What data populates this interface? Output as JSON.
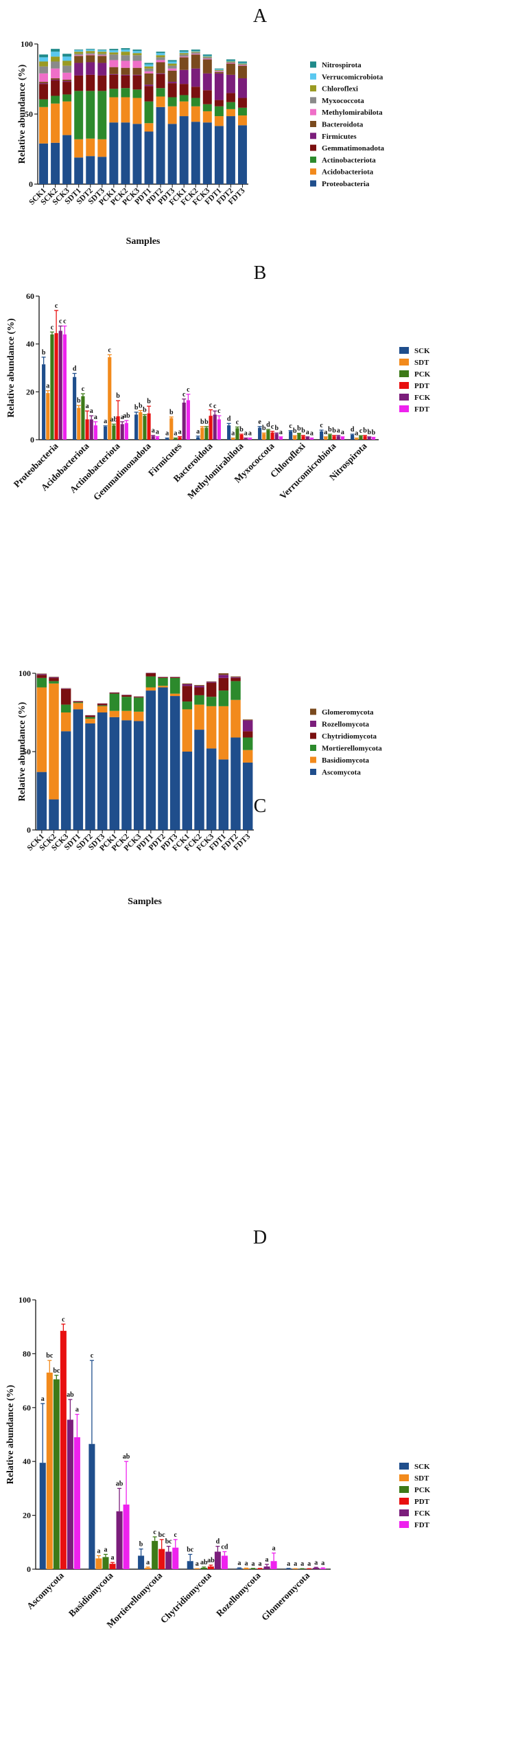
{
  "colors": {
    "Proteobacteria": "#1f4e8c",
    "Acidobacteriota": "#f28a1c",
    "Actinobacteriota": "#2c8a2c",
    "Gemmatimonadota": "#7a1010",
    "Firmicutes": "#7b1d7b",
    "Bacteroidota": "#7a4a1e",
    "Methylomirabilota": "#ef6fc8",
    "Myxococcota": "#8a8a8a",
    "Chloroflexi": "#9a9a22",
    "Verrucomicrobiota": "#5ac8f0",
    "Nitrospirota": "#1f8a8a",
    "Ascomycota": "#1f4e8c",
    "Basidiomycota": "#f28a1c",
    "Mortierellomycota": "#2c8a2c",
    "Chytridiomycota": "#7a1010",
    "Rozellomycota": "#7b1d7b",
    "Glomeromycota": "#7a4a1e",
    "SCK": "#1f4e8c",
    "SDT": "#f28a1c",
    "PCK": "#3d7a18",
    "PDT": "#e81010",
    "FCK": "#7b1d7b",
    "FDT": "#ee22ee"
  },
  "chart_data": [
    {
      "panel": "A",
      "type": "bar",
      "stacked": true,
      "xlabel": "Samples",
      "ylabel": "Relative abundance (%)",
      "ylim": [
        0,
        100
      ],
      "yticks": [
        0,
        50,
        100
      ],
      "categories": [
        "SCK1",
        "SCK2",
        "SCK3",
        "SDT1",
        "SDT2",
        "SDT3",
        "PCK1",
        "PCK2",
        "PCK3",
        "PDT1",
        "PDT2",
        "PDT3",
        "FCK1",
        "FCK2",
        "FCK3",
        "FDT1",
        "FDT2",
        "FDT3"
      ],
      "series": [
        {
          "name": "Proteobacteria",
          "values": [
            29,
            29.5,
            35,
            19,
            20,
            19.5,
            44,
            44,
            43,
            37.5,
            55,
            43,
            48.5,
            44.5,
            44,
            41.5,
            48.5,
            42
          ]
        },
        {
          "name": "Acidobacteriota",
          "values": [
            26,
            28,
            24,
            13,
            12.5,
            12.5,
            18,
            18,
            18.5,
            6,
            7.5,
            12.5,
            10.5,
            11,
            8,
            7,
            5,
            7
          ]
        },
        {
          "name": "Actinobacteriota",
          "values": [
            5.5,
            5.5,
            5,
            34.5,
            34,
            34.5,
            6,
            6.5,
            6,
            15.5,
            6,
            6.5,
            4.5,
            6,
            5,
            7,
            5,
            5.5
          ]
        },
        {
          "name": "Gemmatimonadota",
          "values": [
            11,
            11,
            9,
            11,
            11.5,
            11,
            10,
            9,
            10,
            11,
            10,
            10,
            8,
            8,
            10,
            4.5,
            6.5,
            7
          ]
        },
        {
          "name": "Firmicutes",
          "values": [
            0.5,
            0.5,
            0.5,
            9,
            9,
            9,
            0.5,
            0.5,
            0.5,
            1,
            0.5,
            1,
            10,
            13,
            12,
            19,
            13,
            14
          ]
        },
        {
          "name": "Bacteroidota",
          "values": [
            1,
            1,
            1,
            5,
            5,
            5,
            5,
            5,
            5,
            8,
            8,
            8,
            9,
            10,
            10,
            1,
            8,
            9
          ]
        },
        {
          "name": "Methylomirabilota",
          "values": [
            6,
            7,
            5,
            0.5,
            0.5,
            0.5,
            5,
            5,
            5,
            1.5,
            1.5,
            1.5,
            0.5,
            0.5,
            0.5,
            0.5,
            0.5,
            0.5
          ]
        },
        {
          "name": "Myxococcota",
          "values": [
            5,
            5,
            5,
            1,
            1,
            1,
            4,
            4,
            4,
            2,
            2,
            2,
            1.5,
            1,
            1,
            0.5,
            0.5,
            0.5
          ]
        },
        {
          "name": "Chloroflexi",
          "values": [
            3.5,
            3.5,
            3.5,
            1.5,
            1.5,
            1.5,
            1.5,
            2.5,
            1.5,
            1.5,
            1.5,
            1.5,
            1,
            0.5,
            0.5,
            0.5,
            0.5,
            0.5
          ]
        },
        {
          "name": "Verrucomicrobiota",
          "values": [
            3,
            3.5,
            3,
            1,
            1,
            1,
            1.5,
            1.5,
            1.5,
            1.5,
            1.5,
            1.5,
            1,
            0.5,
            0.5,
            0.5,
            0.5,
            0.5
          ]
        },
        {
          "name": "Nitrospirota",
          "values": [
            2,
            2,
            2,
            0.5,
            0.5,
            0.5,
            1,
            1,
            1,
            1,
            1,
            1,
            1,
            1,
            1,
            0.5,
            1,
            1
          ]
        }
      ]
    },
    {
      "panel": "B",
      "type": "bar",
      "grouped": true,
      "error_bars": true,
      "ylabel": "Relative abundance (%)",
      "ylim": [
        0,
        60
      ],
      "yticks": [
        0,
        20,
        40,
        60
      ],
      "categories": [
        "Proteobacteria",
        "Acidobacteriota",
        "Actinobacteriota",
        "Gemmatimonadota",
        "Firmicutes",
        "Bacteroidota",
        "Methylomirabilota",
        "Myxococcota",
        "Chloroflexi",
        "Verrucomicrobiota",
        "Nitrospirota"
      ],
      "series": [
        {
          "name": "SCK",
          "values": [
            31.5,
            26.2,
            5.5,
            10.5,
            0.5,
            1,
            6,
            5,
            3.5,
            3.5,
            2
          ],
          "errors": [
            3,
            1.5,
            0.3,
            1,
            0.2,
            0.5,
            0.8,
            0.5,
            0.3,
            0.5,
            0.3
          ],
          "letters": [
            "b",
            "d",
            "a",
            "b",
            "a",
            "a",
            "d",
            "e",
            "c",
            "c",
            "d"
          ]
        },
        {
          "name": "SDT",
          "values": [
            19.5,
            13.3,
            34.5,
            11.5,
            9,
            5,
            0.5,
            2.5,
            1.5,
            1,
            0.5
          ],
          "errors": [
            1,
            1,
            1,
            0.7,
            0.5,
            0.5,
            0.2,
            0.3,
            0.2,
            0.2,
            0.2
          ],
          "letters": [
            "a",
            "b",
            "c",
            "b",
            "b",
            "b",
            "a",
            "b",
            "b",
            "a",
            "a"
          ]
        },
        {
          "name": "PCK",
          "values": [
            44,
            18.2,
            6,
            10,
            0.5,
            5,
            4.8,
            4,
            2.5,
            2,
            1.5
          ],
          "errors": [
            1,
            1,
            0.5,
            0.5,
            0.2,
            0.5,
            0.5,
            0.3,
            0.2,
            0.3,
            0.2
          ],
          "letters": [
            "c",
            "c",
            "ab",
            "b",
            "a",
            "b",
            "c",
            "d",
            "b",
            "b",
            "c"
          ]
        },
        {
          "name": "PDT",
          "values": [
            44.5,
            8.5,
            9.8,
            11,
            1,
            10,
            2,
            3,
            1.5,
            1.5,
            1.5
          ],
          "errors": [
            9.5,
            3.5,
            6.5,
            3,
            0.3,
            2.5,
            0.3,
            0.5,
            0.3,
            0.3,
            0.3
          ],
          "letters": [
            "c",
            "a",
            "b",
            "b",
            "a",
            "c",
            "b",
            "c",
            "b",
            "b",
            "b"
          ]
        },
        {
          "name": "FCK",
          "values": [
            45.5,
            8.5,
            6.5,
            1.5,
            15.5,
            10.5,
            0.5,
            2.5,
            1,
            1.5,
            1
          ],
          "errors": [
            2,
            1.5,
            1,
            0.3,
            1.5,
            1.5,
            0.2,
            0.3,
            0.2,
            0.3,
            0.2
          ],
          "letters": [
            "c",
            "a",
            "a",
            "a",
            "c",
            "c",
            "a",
            "b",
            "a",
            "a",
            "b"
          ]
        },
        {
          "name": "FDT",
          "values": [
            44,
            6,
            7,
            1,
            16.5,
            8.5,
            0.5,
            1,
            0.5,
            1,
            0.8
          ],
          "errors": [
            3.5,
            1.5,
            1,
            0.3,
            2.5,
            1.5,
            0.2,
            0.2,
            0.2,
            0.2,
            0.2
          ],
          "letters": [
            "c",
            "a",
            "ab",
            "a",
            "c",
            "c",
            "a",
            "a",
            "a",
            "a",
            "b"
          ]
        }
      ]
    },
    {
      "panel": "C",
      "type": "bar",
      "stacked": true,
      "xlabel": "Samples",
      "ylabel": "Relative abundance (%)",
      "ylim": [
        0,
        100
      ],
      "yticks": [
        0,
        50,
        100
      ],
      "categories": [
        "SCK1",
        "SCK2",
        "SCK3",
        "SDT1",
        "SDT2",
        "SDT3",
        "PCK1",
        "PCK2",
        "PCK3",
        "PDT1",
        "PDT2",
        "PDT3",
        "FCK1",
        "FCK2",
        "FCK3",
        "FDT1",
        "FDT2",
        "FDT3"
      ],
      "series": [
        {
          "name": "Ascomycota",
          "values": [
            37,
            19.5,
            63,
            77,
            68,
            75,
            72,
            70,
            69.5,
            89,
            91,
            85.5,
            50,
            64,
            52,
            45,
            59,
            43
          ]
        },
        {
          "name": "Basidiomycota",
          "values": [
            54,
            74,
            12,
            4,
            3,
            4,
            4,
            6,
            6,
            2,
            1,
            1.5,
            27,
            16,
            27,
            34,
            24,
            8
          ]
        },
        {
          "name": "Mortierellomycota",
          "values": [
            6,
            1.5,
            5,
            0.5,
            1,
            0.5,
            11,
            9,
            9,
            7,
            5,
            10,
            5,
            6,
            6,
            10,
            12,
            8
          ]
        },
        {
          "name": "Chytridiomycota",
          "values": [
            2,
            2,
            10,
            0.5,
            1,
            1,
            0.5,
            1,
            0.5,
            2,
            0.5,
            0.5,
            10,
            5,
            9,
            8,
            2,
            4
          ]
        },
        {
          "name": "Rozellomycota",
          "values": [
            0.5,
            0.5,
            0.3,
            0.2,
            0.2,
            0.2,
            0.2,
            0.2,
            0.2,
            0.2,
            0.2,
            0.2,
            1,
            1,
            0.5,
            2,
            0.5,
            7
          ]
        },
        {
          "name": "Glomeromycota",
          "values": [
            0.3,
            0.3,
            0.2,
            0.1,
            0.1,
            0.1,
            0.1,
            0.1,
            0.1,
            0.1,
            0.1,
            0.1,
            0.5,
            0.5,
            0.3,
            1,
            0.5,
            0.5
          ]
        }
      ]
    },
    {
      "panel": "D",
      "type": "bar",
      "grouped": true,
      "error_bars": true,
      "ylabel": "Relative abundance (%)",
      "ylim": [
        0,
        100
      ],
      "yticks": [
        0,
        20,
        40,
        60,
        80,
        100
      ],
      "categories": [
        "Ascomycota",
        "Basidiomycota",
        "Mortierellomycota",
        "Chytridiomycota",
        "Rozellomycota",
        "Glomeromycota"
      ],
      "series": [
        {
          "name": "SCK",
          "values": [
            39.5,
            46.5,
            5,
            3,
            0.3,
            0.2
          ],
          "errors": [
            22,
            31,
            2.5,
            2.5,
            0.2,
            0.1
          ],
          "letters": [
            "a",
            "c",
            "b",
            "bc",
            "a",
            "a"
          ]
        },
        {
          "name": "SDT",
          "values": [
            73,
            4,
            0.5,
            0.1,
            0.3,
            0.1
          ],
          "errors": [
            4.5,
            1,
            0.3,
            0.1,
            0.1,
            0.1
          ],
          "letters": [
            "bc",
            "a",
            "a",
            "a",
            "a",
            "a"
          ]
        },
        {
          "name": "PCK",
          "values": [
            70.5,
            4.5,
            10.5,
            0.5,
            0.2,
            0.1
          ],
          "errors": [
            1.5,
            1,
            1.5,
            0.3,
            0.1,
            0.1
          ],
          "letters": [
            "bc",
            "a",
            "c",
            "ab",
            "a",
            "a"
          ]
        },
        {
          "name": "PDT",
          "values": [
            88.5,
            2,
            7.5,
            1,
            0.2,
            0.1
          ],
          "errors": [
            2.5,
            0.5,
            3.5,
            0.5,
            0.1,
            0.1
          ],
          "letters": [
            "c",
            "a",
            "bc",
            "ab",
            "a",
            "a"
          ]
        },
        {
          "name": "FCK",
          "values": [
            55.5,
            21.5,
            6.5,
            6.5,
            1,
            0.5
          ],
          "errors": [
            7.5,
            8.5,
            2,
            2,
            0.8,
            0.2
          ],
          "letters": [
            "ab",
            "ab",
            "bc",
            "d",
            "a",
            "a"
          ]
        },
        {
          "name": "FDT",
          "values": [
            49,
            24,
            8,
            5,
            3,
            0.3
          ],
          "errors": [
            8.5,
            16,
            3,
            1.5,
            3,
            0.2
          ],
          "letters": [
            "a",
            "ab",
            "c",
            "cd",
            "a",
            "a"
          ]
        }
      ]
    }
  ]
}
